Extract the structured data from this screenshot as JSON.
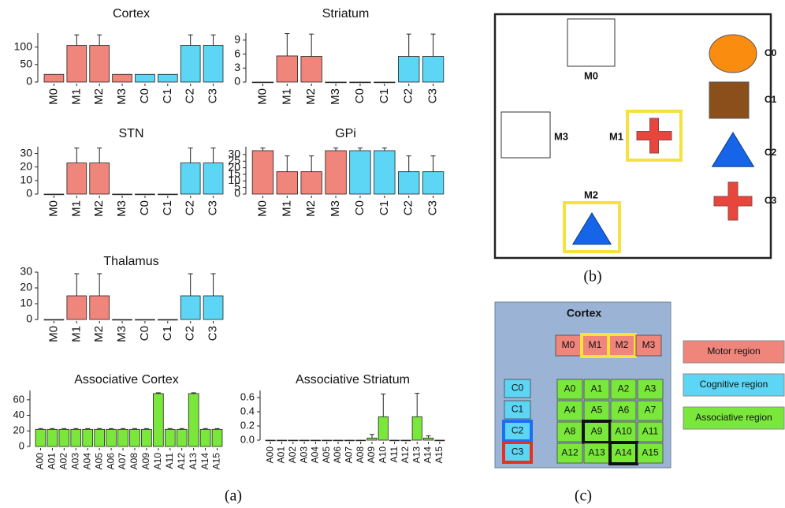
{
  "chart_data": [
    {
      "type": "bar",
      "title": "Cortex",
      "categories": [
        "M0",
        "M1",
        "M2",
        "M3",
        "C0",
        "C1",
        "C2",
        "C3"
      ],
      "values": [
        22,
        105,
        105,
        22,
        22,
        22,
        105,
        105
      ],
      "errors": [
        0,
        30,
        30,
        0,
        0,
        0,
        30,
        30
      ],
      "colors": [
        "#f0857c",
        "#f0857c",
        "#f0857c",
        "#f0857c",
        "#5dd6f5",
        "#5dd6f5",
        "#5dd6f5",
        "#5dd6f5"
      ],
      "ylim": [
        0,
        140
      ],
      "yticks": [
        0,
        50,
        100
      ]
    },
    {
      "type": "bar",
      "title": "Striatum",
      "categories": [
        "M0",
        "M1",
        "M2",
        "M3",
        "C0",
        "C1",
        "C2",
        "C3"
      ],
      "values": [
        0,
        5.6,
        5.5,
        0,
        0,
        0,
        5.5,
        5.5
      ],
      "errors": [
        0,
        4.8,
        4.8,
        0,
        0,
        0,
        4.8,
        4.8
      ],
      "colors": [
        "#f0857c",
        "#f0857c",
        "#f0857c",
        "#f0857c",
        "#5dd6f5",
        "#5dd6f5",
        "#5dd6f5",
        "#5dd6f5"
      ],
      "ylim": [
        0,
        10.5
      ],
      "yticks": [
        0,
        3,
        6,
        9
      ]
    },
    {
      "type": "bar",
      "title": "STN",
      "categories": [
        "M0",
        "M1",
        "M2",
        "M3",
        "C0",
        "C1",
        "C2",
        "C3"
      ],
      "values": [
        0,
        23,
        23,
        0,
        0,
        0,
        23,
        23
      ],
      "errors": [
        0,
        11,
        11,
        0,
        0,
        0,
        11,
        11
      ],
      "colors": [
        "#f0857c",
        "#f0857c",
        "#f0857c",
        "#f0857c",
        "#5dd6f5",
        "#5dd6f5",
        "#5dd6f5",
        "#5dd6f5"
      ],
      "ylim": [
        0,
        35
      ],
      "yticks": [
        0,
        10,
        20,
        30
      ]
    },
    {
      "type": "bar",
      "title": "GPi",
      "categories": [
        "M0",
        "M1",
        "M2",
        "M3",
        "C0",
        "C1",
        "C2",
        "C3"
      ],
      "values": [
        33,
        17,
        17,
        33,
        33,
        33,
        17,
        17
      ],
      "errors": [
        2,
        12,
        12,
        2,
        2,
        2,
        12,
        12
      ],
      "colors": [
        "#f0857c",
        "#f0857c",
        "#f0857c",
        "#f0857c",
        "#5dd6f5",
        "#5dd6f5",
        "#5dd6f5",
        "#5dd6f5"
      ],
      "ylim": [
        0,
        36
      ],
      "yticks": [
        0,
        5,
        10,
        15,
        20,
        25,
        30
      ]
    },
    {
      "type": "bar",
      "title": "Thalamus",
      "categories": [
        "M0",
        "M1",
        "M2",
        "M3",
        "C0",
        "C1",
        "C2",
        "C3"
      ],
      "values": [
        0,
        15,
        15,
        0,
        0,
        0,
        15,
        15
      ],
      "errors": [
        0,
        14,
        14,
        0,
        0,
        0,
        14,
        14
      ],
      "colors": [
        "#f0857c",
        "#f0857c",
        "#f0857c",
        "#f0857c",
        "#5dd6f5",
        "#5dd6f5",
        "#5dd6f5",
        "#5dd6f5"
      ],
      "ylim": [
        0,
        30
      ],
      "yticks": [
        0,
        10,
        20,
        30
      ]
    },
    {
      "type": "bar",
      "title": "Associative Cortex",
      "categories": [
        "A00",
        "A01",
        "A02",
        "A03",
        "A04",
        "A05",
        "A06",
        "A07",
        "A08",
        "A09",
        "A10",
        "A11",
        "A12",
        "A13",
        "A14",
        "A15"
      ],
      "values": [
        22,
        22,
        22,
        22,
        22,
        22,
        22,
        22,
        22,
        22,
        68,
        22,
        22,
        68,
        22,
        22
      ],
      "errors": [
        1,
        1,
        1,
        1,
        1,
        1,
        1,
        1,
        1,
        1,
        1,
        1,
        1,
        1,
        1,
        1
      ],
      "colors": [
        "#7ae83a",
        "#7ae83a",
        "#7ae83a",
        "#7ae83a",
        "#7ae83a",
        "#7ae83a",
        "#7ae83a",
        "#7ae83a",
        "#7ae83a",
        "#7ae83a",
        "#7ae83a",
        "#7ae83a",
        "#7ae83a",
        "#7ae83a",
        "#7ae83a",
        "#7ae83a"
      ],
      "ylim": [
        0,
        72
      ],
      "yticks": [
        0,
        20,
        40,
        60
      ]
    },
    {
      "type": "bar",
      "title": "Associative Striatum",
      "categories": [
        "A00",
        "A01",
        "A02",
        "A03",
        "A04",
        "A05",
        "A06",
        "A07",
        "A08",
        "A09",
        "A10",
        "A11",
        "A12",
        "A13",
        "A14",
        "A15"
      ],
      "values": [
        0,
        0,
        0,
        0,
        0,
        0,
        0,
        0,
        0,
        0.03,
        0.33,
        0,
        0,
        0.33,
        0.03,
        0
      ],
      "errors": [
        0,
        0,
        0,
        0,
        0,
        0,
        0,
        0,
        0,
        0.05,
        0.32,
        0,
        0,
        0.33,
        0.03,
        0
      ],
      "colors": [
        "#7ae83a",
        "#7ae83a",
        "#7ae83a",
        "#7ae83a",
        "#7ae83a",
        "#7ae83a",
        "#7ae83a",
        "#7ae83a",
        "#7ae83a",
        "#7ae83a",
        "#7ae83a",
        "#7ae83a",
        "#7ae83a",
        "#7ae83a",
        "#7ae83a",
        "#7ae83a"
      ],
      "ylim": [
        0,
        0.7
      ],
      "yticks": [
        {
          "value": 0,
          "label": "0.0"
        },
        0.2,
        0.4,
        0.6
      ]
    }
  ],
  "panel_labels": [
    "(a)",
    "(b)",
    "(c)"
  ],
  "task": {
    "targets": [
      "M0",
      "M1",
      "M2",
      "M3"
    ],
    "legend": [
      "C0",
      "C1",
      "C2",
      "C3"
    ]
  },
  "cortex_map": {
    "title": "Cortex",
    "motor": [
      "M0",
      "M1",
      "M2",
      "M3"
    ],
    "cognitive": [
      "C0",
      "C1",
      "C2",
      "C3"
    ],
    "associative": [
      "A0",
      "A1",
      "A2",
      "A3",
      "A4",
      "A5",
      "A6",
      "A7",
      "A8",
      "A9",
      "A10",
      "A11",
      "A12",
      "A13",
      "A14",
      "A15"
    ],
    "legend": [
      "Motor region",
      "Cognitive region",
      "Associative region"
    ]
  }
}
